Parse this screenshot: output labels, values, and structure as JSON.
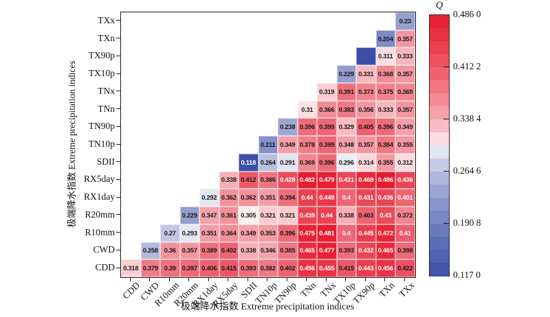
{
  "chart_data": {
    "type": "heatmap",
    "title": "",
    "xlabel": "极端降水指数 Extreme precipitation indices",
    "ylabel": "极端降水指数 Extreme precipitation indices",
    "x_categories": [
      "CDD",
      "CWD",
      "R10mm",
      "R20mm",
      "RX1day",
      "RX5day",
      "SDII",
      "TN10p",
      "TN90p",
      "TNn",
      "TNx",
      "TX10p",
      "TX90p",
      "TXn",
      "TXx"
    ],
    "y_categories_top_to_bottom": [
      "TXx",
      "TXn",
      "TX90p",
      "TX10p",
      "TNx",
      "TNn",
      "TN90p",
      "TN10p",
      "SDII",
      "RX5day",
      "RX1day",
      "R20mm",
      "R10mm",
      "CWD",
      "CDD"
    ],
    "rows": [
      {
        "name": "TXx",
        "values": [
          null,
          null,
          null,
          null,
          null,
          null,
          null,
          null,
          null,
          null,
          null,
          null,
          null,
          null,
          0.23
        ]
      },
      {
        "name": "TXn",
        "values": [
          null,
          null,
          null,
          null,
          null,
          null,
          null,
          null,
          null,
          null,
          null,
          null,
          null,
          0.204,
          0.357
        ]
      },
      {
        "name": "TX90p",
        "values": [
          null,
          null,
          null,
          null,
          null,
          null,
          null,
          null,
          null,
          null,
          null,
          null,
          "",
          0.311,
          0.333
        ]
      },
      {
        "name": "TX10p",
        "values": [
          null,
          null,
          null,
          null,
          null,
          null,
          null,
          null,
          null,
          null,
          null,
          0.229,
          0.331,
          0.368,
          0.357
        ]
      },
      {
        "name": "TNx",
        "values": [
          null,
          null,
          null,
          null,
          null,
          null,
          null,
          null,
          null,
          null,
          0.319,
          0.391,
          0.373,
          0.375,
          0.369
        ]
      },
      {
        "name": "TNn",
        "values": [
          null,
          null,
          null,
          null,
          null,
          null,
          null,
          null,
          null,
          0.31,
          0.366,
          0.383,
          0.356,
          0.333,
          0.357
        ]
      },
      {
        "name": "TN90p",
        "values": [
          null,
          null,
          null,
          null,
          null,
          null,
          null,
          null,
          0.238,
          0.396,
          0.399,
          0.329,
          0.405,
          0.396,
          0.349
        ]
      },
      {
        "name": "TN10p",
        "values": [
          null,
          null,
          null,
          null,
          null,
          null,
          null,
          0.211,
          0.349,
          0.378,
          0.399,
          0.348,
          0.357,
          0.384,
          0.355
        ]
      },
      {
        "name": "SDII",
        "values": [
          null,
          null,
          null,
          null,
          null,
          null,
          0.118,
          0.264,
          0.291,
          0.369,
          0.396,
          0.296,
          0.314,
          0.355,
          0.312
        ]
      },
      {
        "name": "RX5day",
        "values": [
          null,
          null,
          null,
          null,
          null,
          0.338,
          0.412,
          0.386,
          0.428,
          0.482,
          0.479,
          0.431,
          0.468,
          0.486,
          0.436
        ]
      },
      {
        "name": "RX1day",
        "values": [
          null,
          null,
          null,
          null,
          0.292,
          0.362,
          0.362,
          0.351,
          0.394,
          0.44,
          0.449,
          0.4,
          0.431,
          0.436,
          0.401
        ]
      },
      {
        "name": "R20mm",
        "values": [
          null,
          null,
          null,
          0.229,
          0.347,
          0.361,
          0.305,
          0.321,
          0.321,
          0.439,
          0.44,
          0.338,
          0.403,
          0.43,
          0.372
        ]
      },
      {
        "name": "R10mm",
        "values": [
          null,
          null,
          0.27,
          0.293,
          0.351,
          0.364,
          0.349,
          0.353,
          0.396,
          0.475,
          0.481,
          0.4,
          0.445,
          0.472,
          0.41
        ]
      },
      {
        "name": "CWD",
        "values": [
          null,
          0.258,
          0.36,
          0.357,
          0.389,
          0.402,
          0.338,
          0.346,
          0.385,
          0.465,
          0.477,
          0.393,
          0.432,
          0.465,
          0.398
        ]
      },
      {
        "name": "CDD",
        "values": [
          0.318,
          0.379,
          0.39,
          0.397,
          0.406,
          0.415,
          0.393,
          0.382,
          0.402,
          0.456,
          0.455,
          0.415,
          0.443,
          0.456,
          0.422
        ]
      }
    ],
    "value_range": {
      "min": 0.117,
      "max": 0.486
    },
    "colorbar": {
      "title": "Q",
      "tick_labels": [
        "0.486 0",
        "0.412 2",
        "0.338 4",
        "0.264 6",
        "0.190 8",
        "0.117 0"
      ],
      "steps": 20
    },
    "colors": {
      "max_red": "#e7192d",
      "mid_white": "#ffffff",
      "min_blue": "#3b4fa8",
      "cell_text_dark": "#1a1a1a",
      "cell_text_light": "#ffffff"
    },
    "style_hints": {
      "white_text_threshold_high": 0.428,
      "white_text_threshold_low": 0.125,
      "white_text_extra_cells": [
        [
          10,
          11
        ],
        [
          10,
          14
        ],
        [
          12,
          11
        ],
        [
          12,
          14
        ]
      ],
      "legend_position": "right",
      "grid": false
    }
  }
}
